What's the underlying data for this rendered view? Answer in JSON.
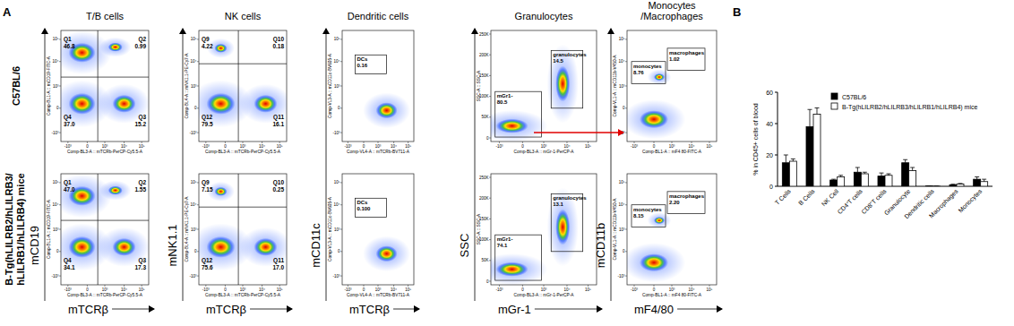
{
  "figure": {
    "panel_labels": [
      "A",
      "B"
    ],
    "column_titles": [
      [
        "T/B cells"
      ],
      [
        "NK cells"
      ],
      [
        "Dendritic cells"
      ],
      [
        "Granulocytes"
      ],
      [
        "Monocytes",
        "/Macrophages"
      ]
    ],
    "row_labels": [
      [
        "C57BL/6"
      ],
      [
        "B-Tg(hLILRB2/hLILRB3/",
        "hLILRB1/hLILRB4) mice"
      ]
    ],
    "y_axis_labels": [
      "mCD19",
      "mNK1.1",
      "mCD11c",
      "SSC",
      "mCD11b"
    ],
    "x_axis_labels": [
      "mTCRβ",
      "mTCRβ",
      "mTCRβ",
      "mGr-1",
      "mF4/80"
    ],
    "channel_x": [
      "Comp-BL3-A :: mTCRb-PerCP-Cy5.5-A",
      "Comp-BL3-A :: mTCRb-PerCP-Cy5.5-A",
      "Comp-VL4-A :: mTCRb-BV711-A",
      "Comp-BL3-A :: mGr-1-PerCP-A",
      "Comp-BL1-A :: mF4 80-FITC-A"
    ],
    "channel_y": [
      "Comp-BL1-A :: mCD19-FITC-A",
      "Comp-BL4-A :: mNK1.1-PE-Cy7-A",
      "Comp-VL3-A :: mCD11c-BV605-A",
      "SSC-A :: SSC-A",
      "Comp-VL1-A :: mCD11b-V450-A"
    ],
    "log_ticks": [
      "-10³",
      "0",
      "10³",
      "10⁴",
      "10⁵"
    ],
    "ssc_ticks": [
      "0",
      "50K",
      "100K",
      "150K",
      "200K",
      "250K"
    ],
    "plots": [
      [
        {
          "gates": [
            {
              "name": "Q1",
              "value": "46.8"
            },
            {
              "name": "Q2",
              "value": "0.99"
            },
            {
              "name": "Q4",
              "value": "37.0"
            },
            {
              "name": "Q3",
              "value": "15.2"
            }
          ]
        },
        {
          "gates": [
            {
              "name": "Q9",
              "value": "4.22"
            },
            {
              "name": "Q10",
              "value": "0.18"
            },
            {
              "name": "Q12",
              "value": "79.5"
            },
            {
              "name": "Q11",
              "value": "16.1"
            }
          ]
        },
        {
          "gates": [
            {
              "name": "DCs",
              "value": "0.16"
            }
          ]
        },
        {
          "gates": [
            {
              "name": "granulocytes",
              "value": "14.5"
            },
            {
              "name": "mGr1-",
              "value": "80.5"
            }
          ]
        },
        {
          "gates": [
            {
              "name": "monocytes",
              "value": "8.76"
            },
            {
              "name": "macrophages",
              "value": "1.02"
            }
          ]
        }
      ],
      [
        {
          "gates": [
            {
              "name": "Q1",
              "value": "47.0"
            },
            {
              "name": "Q2",
              "value": "1.55"
            },
            {
              "name": "Q4",
              "value": "34.1"
            },
            {
              "name": "Q3",
              "value": "17.3"
            }
          ]
        },
        {
          "gates": [
            {
              "name": "Q9",
              "value": "7.15"
            },
            {
              "name": "Q10",
              "value": "0.25"
            },
            {
              "name": "Q12",
              "value": "75.6"
            },
            {
              "name": "Q11",
              "value": "17.0"
            }
          ]
        },
        {
          "gates": [
            {
              "name": "DCs",
              "value": "0.100"
            }
          ]
        },
        {
          "gates": [
            {
              "name": "granulocytes",
              "value": "13.1"
            },
            {
              "name": "mGr1-",
              "value": "74.1"
            }
          ]
        },
        {
          "gates": [
            {
              "name": "monocytes",
              "value": "8.15"
            },
            {
              "name": "macrophages",
              "value": "2.20"
            }
          ]
        }
      ]
    ]
  },
  "chart_data": {
    "type": "bar",
    "ylabel": "% in CD45+ cells of blood",
    "categories": [
      "T Cells",
      "B Cells",
      "NK Cell",
      "CD4⁺T cells",
      "CD8⁺T cells",
      "Granulocyte",
      "Dendritic cells",
      "Macrophages",
      "Monocytes"
    ],
    "ylim": [
      0,
      60
    ],
    "yticks": [
      0,
      20,
      40,
      60
    ],
    "legend": "upper right",
    "series": [
      {
        "name": "C57BL/6",
        "color": "#000000",
        "values": [
          15,
          38,
          4,
          9,
          6.5,
          15,
          0.2,
          1,
          4.5
        ],
        "errors": [
          5,
          11,
          0.5,
          3,
          2,
          2,
          0.05,
          0.3,
          1.5
        ]
      },
      {
        "name": "B-Tg(hLILRB2/hLILRB3/hLILRB1/hLILRB4) mice",
        "color": "#ffffff",
        "values": [
          16,
          46,
          6,
          8,
          7,
          10,
          0.1,
          1.5,
          3
        ],
        "errors": [
          1.5,
          4,
          1,
          1,
          1,
          2,
          0.05,
          0.3,
          1.5
        ]
      }
    ]
  }
}
